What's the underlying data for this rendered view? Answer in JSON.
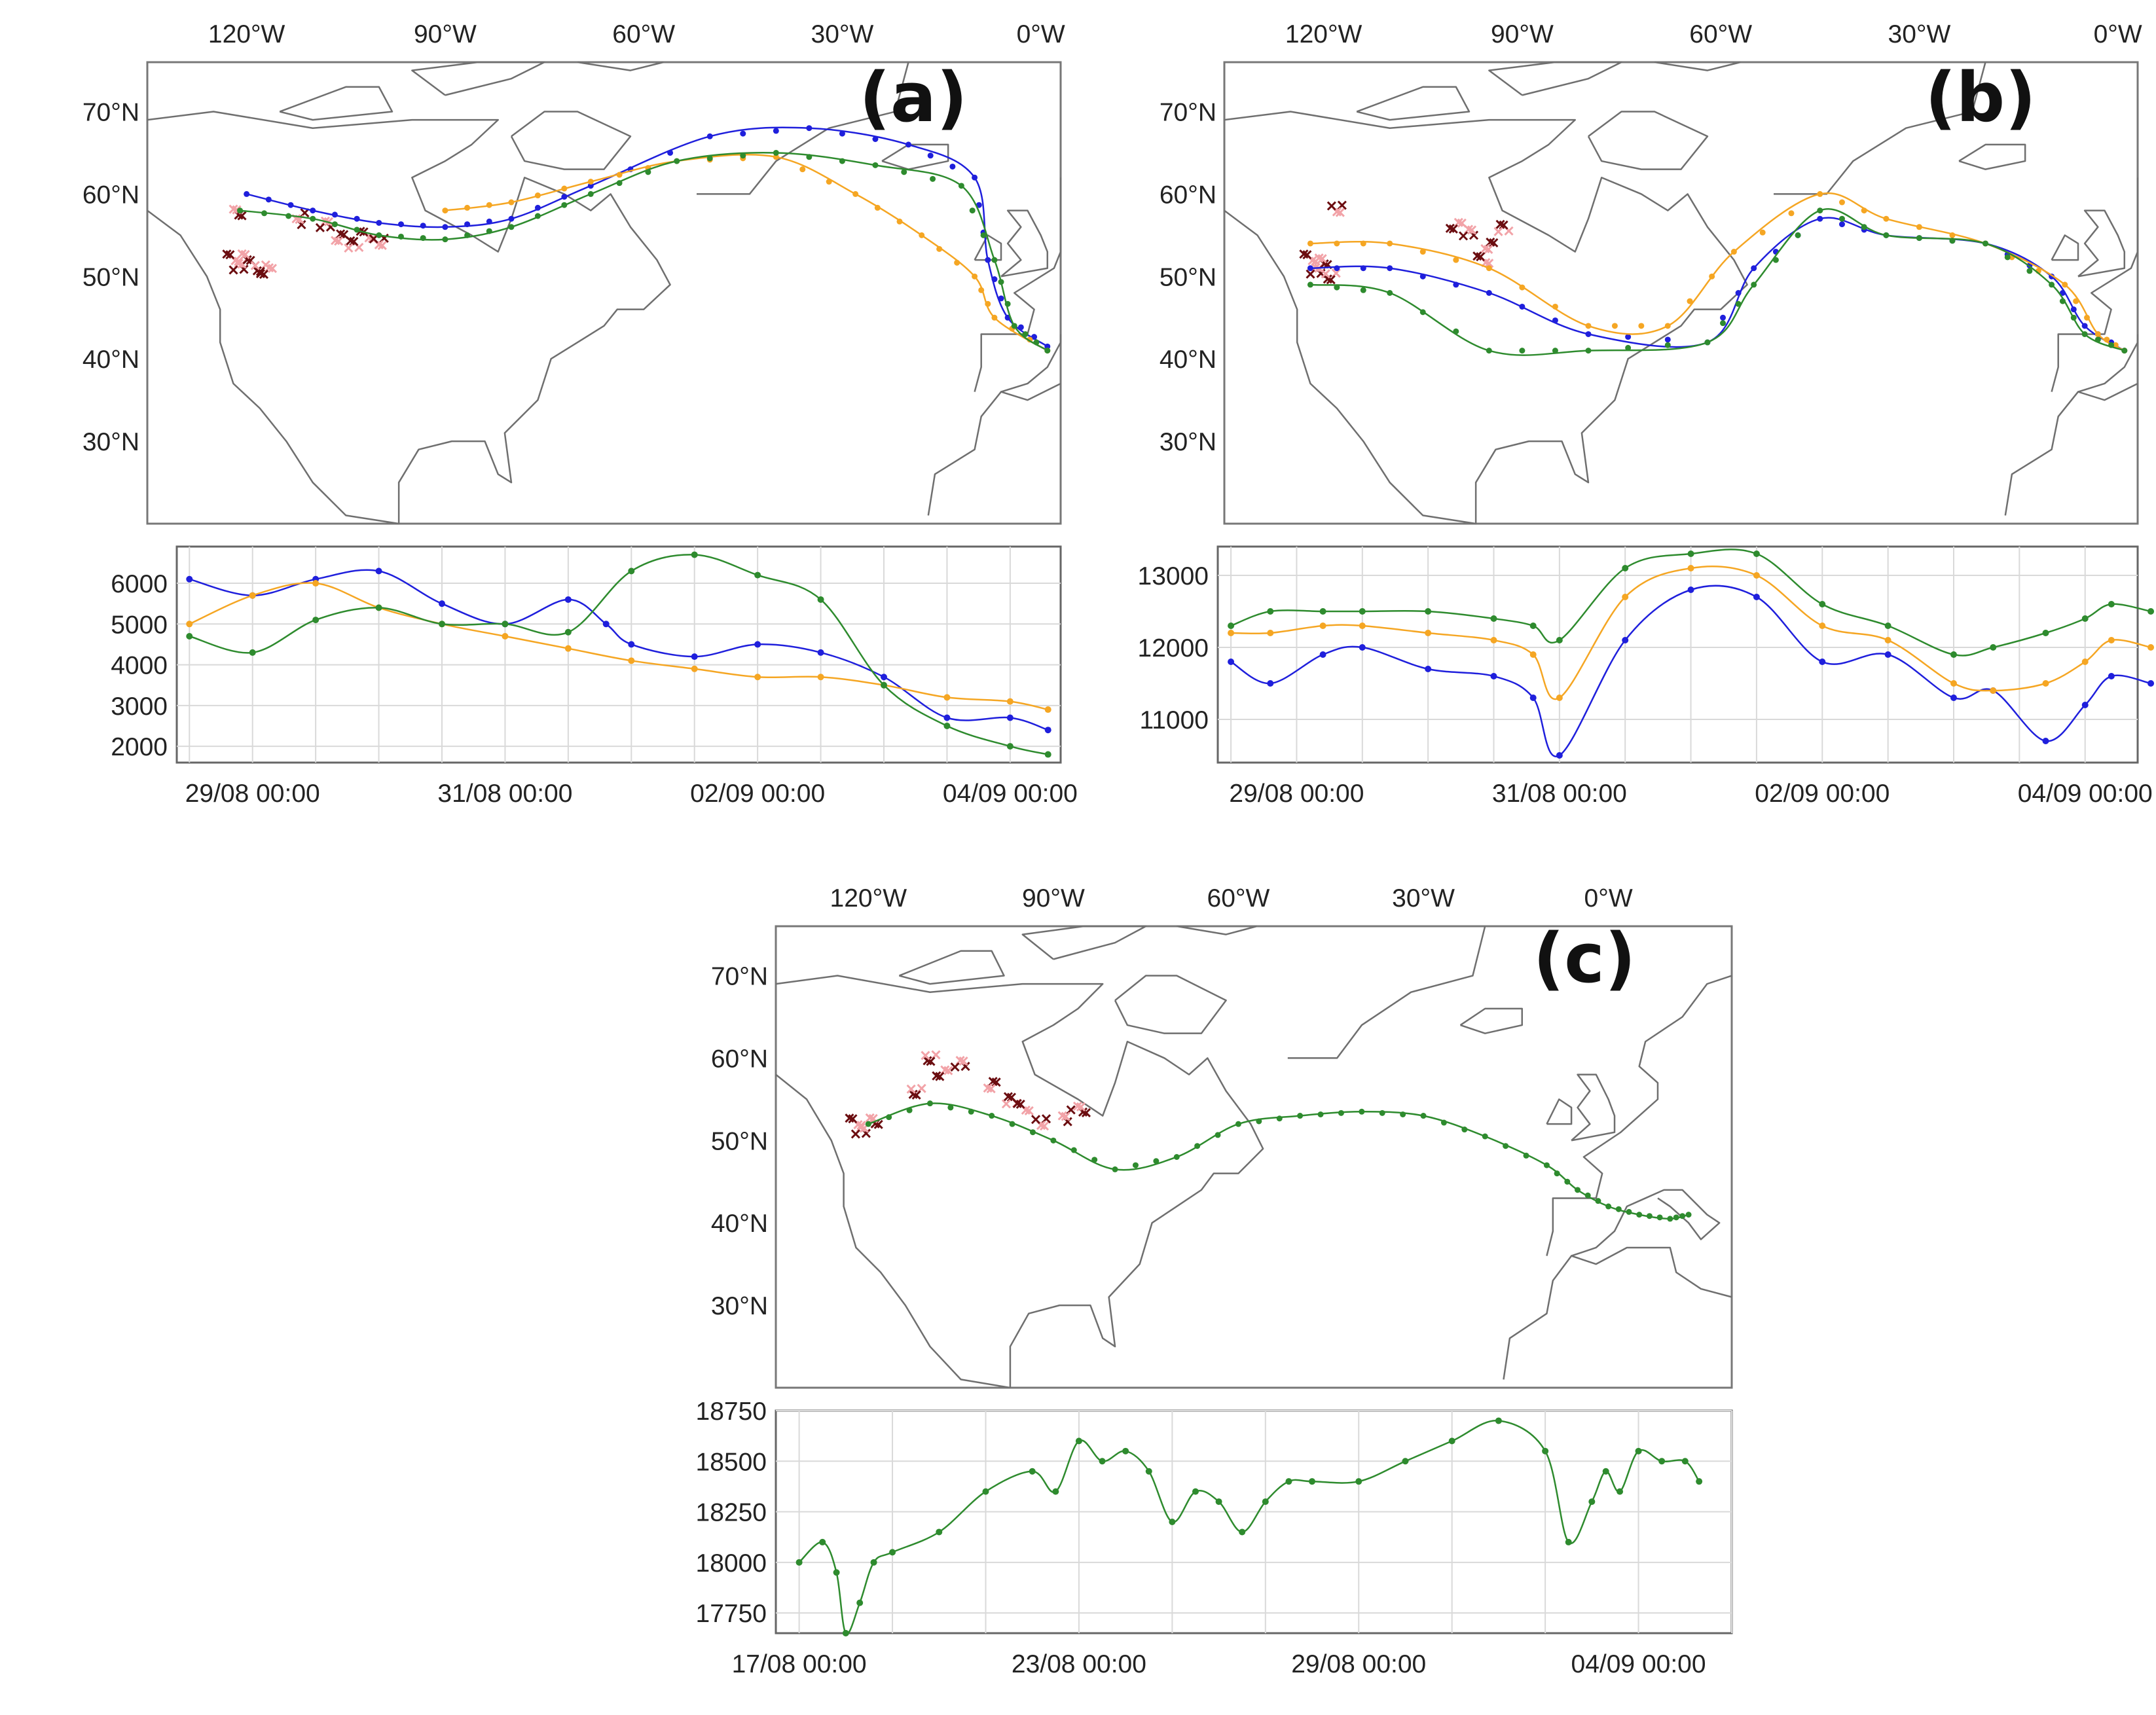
{
  "colors": {
    "blue": "#1f1fdc",
    "orange": "#f5a623",
    "green": "#2e8b2e",
    "fire_dark": "#6b0d10",
    "fire_light": "#f2a3a8"
  },
  "chart_data": [
    {
      "panel": "a",
      "type": "map+line",
      "label": "(a)",
      "map": {
        "lon_ticks": [
          "120°W",
          "90°W",
          "60°W",
          "30°W",
          "0°W"
        ],
        "lat_ticks": [
          "70°N",
          "60°N",
          "50°N",
          "40°N",
          "30°N"
        ],
        "lon_range": [
          -135,
          3
        ],
        "lat_range": [
          20,
          76
        ]
      },
      "trajectories": [
        {
          "name": "blue",
          "lon": [
            -120,
            -110,
            -100,
            -90,
            -80,
            -68,
            -50,
            -35,
            -20,
            -10,
            -8,
            -5,
            1
          ],
          "lat": [
            60,
            58,
            56.5,
            56,
            57,
            61,
            67,
            68,
            66,
            62,
            52,
            45,
            41.5
          ]
        },
        {
          "name": "orange",
          "lon": [
            -90,
            -80,
            -68,
            -55,
            -40,
            -28,
            -18,
            -10,
            -7,
            1
          ],
          "lat": [
            58,
            59,
            61.5,
            64,
            64.5,
            60,
            55,
            50,
            45,
            41
          ]
        },
        {
          "name": "green",
          "lon": [
            -121,
            -110,
            -100,
            -90,
            -80,
            -68,
            -55,
            -40,
            -25,
            -12,
            -7,
            -4,
            1
          ],
          "lat": [
            58,
            57,
            55,
            54.5,
            56,
            60,
            64,
            65,
            63.5,
            61,
            52,
            44,
            41
          ]
        }
      ],
      "altitude": {
        "x_ticks": [
          "29/08 00:00",
          "31/08 00:00",
          "02/09 00:00",
          "04/09 00:00"
        ],
        "x_range_days": [
          -0.6,
          6.4
        ],
        "ylim": [
          1600,
          6900
        ],
        "y_ticks": [
          2000,
          3000,
          4000,
          5000,
          6000
        ],
        "series": [
          {
            "name": "blue",
            "x": [
              -0.5,
              0,
              0.5,
              1.0,
              1.5,
              2.0,
              2.5,
              2.8,
              3.0,
              3.5,
              4.0,
              4.5,
              5.0,
              5.5,
              6.0,
              6.3
            ],
            "y": [
              6100,
              5700,
              6100,
              6300,
              5500,
              5000,
              5600,
              5000,
              4500,
              4200,
              4500,
              4300,
              3700,
              2700,
              2700,
              2400
            ]
          },
          {
            "name": "orange",
            "x": [
              -0.5,
              0,
              0.5,
              1.0,
              1.5,
              2.0,
              2.5,
              3.0,
              3.5,
              4.0,
              4.5,
              5.0,
              5.5,
              6.0,
              6.3
            ],
            "y": [
              5000,
              5700,
              6000,
              5400,
              5000,
              4700,
              4400,
              4100,
              3900,
              3700,
              3700,
              3500,
              3200,
              3100,
              2900
            ]
          },
          {
            "name": "green",
            "x": [
              -0.5,
              0,
              0.5,
              1.0,
              1.5,
              2.0,
              2.5,
              3.0,
              3.5,
              4.0,
              4.5,
              5.0,
              5.5,
              6.0,
              6.3
            ],
            "y": [
              4700,
              4300,
              5100,
              5400,
              5000,
              5000,
              4800,
              6300,
              6700,
              6200,
              5600,
              3500,
              2500,
              2000,
              1800
            ]
          }
        ]
      }
    },
    {
      "panel": "b",
      "type": "map+line",
      "label": "(b)",
      "map": {
        "lon_ticks": [
          "120°W",
          "90°W",
          "60°W",
          "30°W",
          "0°W"
        ],
        "lat_ticks": [
          "70°N",
          "60°N",
          "50°N",
          "40°N",
          "30°N"
        ],
        "lon_range": [
          -135,
          3
        ],
        "lat_range": [
          20,
          76
        ]
      },
      "trajectories": [
        {
          "name": "blue",
          "lon": [
            -122,
            -110,
            -95,
            -80,
            -62,
            -55,
            -45,
            -35,
            -20,
            -10,
            -5,
            1
          ],
          "lat": [
            51,
            51,
            48,
            43,
            42,
            51,
            57,
            55,
            54,
            50,
            44,
            41
          ]
        },
        {
          "name": "orange",
          "lon": [
            -122,
            -110,
            -95,
            -80,
            -68,
            -58,
            -45,
            -35,
            -20,
            -8,
            -3,
            1
          ],
          "lat": [
            54,
            54,
            51,
            44,
            44,
            53,
            60,
            57,
            54,
            49,
            43,
            41
          ]
        },
        {
          "name": "green",
          "lon": [
            -122,
            -110,
            -95,
            -80,
            -62,
            -55,
            -45,
            -35,
            -20,
            -10,
            -5,
            1
          ],
          "lat": [
            49,
            48,
            41,
            41,
            42,
            49,
            58,
            55,
            54,
            49,
            43,
            41
          ]
        }
      ],
      "altitude": {
        "x_ticks": [
          "29/08 00:00",
          "31/08 00:00",
          "02/09 00:00",
          "04/09 00:00"
        ],
        "x_range_days": [
          -0.6,
          6.4
        ],
        "ylim": [
          10400,
          13400
        ],
        "y_ticks": [
          11000,
          12000,
          13000
        ],
        "series": [
          {
            "name": "blue",
            "x": [
              -0.5,
              -0.2,
              0.2,
              0.5,
              1.0,
              1.5,
              1.8,
              2.0,
              2.5,
              3.0,
              3.5,
              4.0,
              4.5,
              5.0,
              5.3,
              5.7,
              6.0,
              6.2,
              6.5
            ],
            "y": [
              11800,
              11500,
              11900,
              12000,
              11700,
              11600,
              11300,
              10500,
              12100,
              12800,
              12700,
              11800,
              11900,
              11300,
              11400,
              10700,
              11200,
              11600,
              11500
            ]
          },
          {
            "name": "orange",
            "x": [
              -0.5,
              -0.2,
              0.2,
              0.5,
              1.0,
              1.5,
              1.8,
              2.0,
              2.5,
              3.0,
              3.5,
              4.0,
              4.5,
              5.0,
              5.3,
              5.7,
              6.0,
              6.2,
              6.5
            ],
            "y": [
              12200,
              12200,
              12300,
              12300,
              12200,
              12100,
              11900,
              11300,
              12700,
              13100,
              13000,
              12300,
              12100,
              11500,
              11400,
              11500,
              11800,
              12100,
              12000
            ]
          },
          {
            "name": "green",
            "x": [
              -0.5,
              -0.2,
              0.2,
              0.5,
              1.0,
              1.5,
              1.8,
              2.0,
              2.5,
              3.0,
              3.5,
              4.0,
              4.5,
              5.0,
              5.3,
              5.7,
              6.0,
              6.2,
              6.5
            ],
            "y": [
              12300,
              12500,
              12500,
              12500,
              12500,
              12400,
              12300,
              12100,
              13100,
              13300,
              13300,
              12600,
              12300,
              11900,
              12000,
              12200,
              12400,
              12600,
              12500
            ]
          }
        ]
      }
    },
    {
      "panel": "c",
      "type": "map+line",
      "label": "(c)",
      "map": {
        "lon_ticks": [
          "120°W",
          "90°W",
          "60°W",
          "30°W",
          "0°W"
        ],
        "lat_ticks": [
          "70°N",
          "60°N",
          "50°N",
          "40°N",
          "30°N"
        ],
        "lon_range": [
          -135,
          20
        ],
        "lat_range": [
          20,
          76
        ]
      },
      "trajectories": [
        {
          "name": "green",
          "lon": [
            -120,
            -110,
            -100,
            -90,
            -80,
            -70,
            -60,
            -50,
            -40,
            -30,
            -20,
            -10,
            -5,
            0,
            5,
            10,
            13
          ],
          "lat": [
            52,
            54.5,
            53,
            50,
            46.5,
            48,
            52,
            53,
            53.5,
            53,
            50.5,
            47,
            44,
            42,
            41,
            40.5,
            41
          ]
        }
      ],
      "altitude": {
        "x_ticks": [
          "17/08 00:00",
          "23/08 00:00",
          "29/08 00:00",
          "04/09 00:00"
        ],
        "x_range_days": [
          -0.5,
          20.0
        ],
        "ylim": [
          17650,
          18750
        ],
        "y_ticks": [
          17750,
          18000,
          18250,
          18500,
          18750
        ],
        "series": [
          {
            "name": "green",
            "x": [
              0,
              0.5,
              0.8,
              1.0,
              1.3,
              1.6,
              2,
              3,
              4,
              5,
              5.5,
              6,
              6.5,
              7,
              7.5,
              8,
              8.5,
              9,
              9.5,
              10,
              10.5,
              11,
              12,
              13,
              14,
              15,
              16,
              16.5,
              17,
              17.3,
              17.6,
              18,
              18.5,
              19,
              19.3
            ],
            "y": [
              18000,
              18100,
              17950,
              17650,
              17800,
              18000,
              18050,
              18150,
              18350,
              18450,
              18350,
              18600,
              18500,
              18550,
              18450,
              18200,
              18350,
              18300,
              18150,
              18300,
              18400,
              18400,
              18400,
              18500,
              18600,
              18700,
              18550,
              18100,
              18300,
              18450,
              18350,
              18550,
              18500,
              18500,
              18400
            ]
          }
        ]
      }
    }
  ]
}
